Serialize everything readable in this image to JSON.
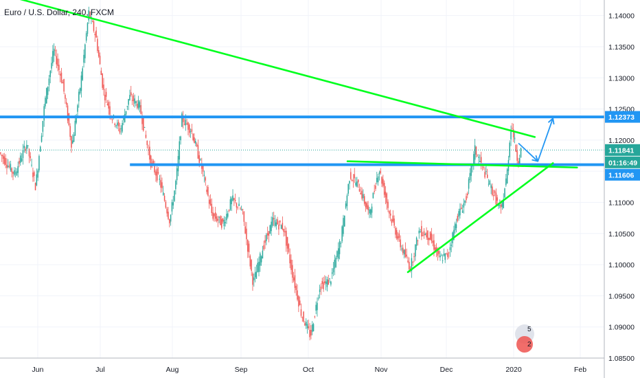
{
  "chart_data": {
    "type": "candlestick",
    "title": "Euro / U.S. Dollar, 240, FXCM",
    "x_ticks": [
      "Jun",
      "Jul",
      "Aug",
      "Sep",
      "Oct",
      "Nov",
      "Dec",
      "2020",
      "Feb"
    ],
    "y_ticks": [
      "1.14000",
      "1.13500",
      "1.13000",
      "1.12500",
      "1.12000",
      "1.11500",
      "1.11000",
      "1.10500",
      "1.10000",
      "1.09500",
      "1.09000",
      "1.08500"
    ],
    "ylim": [
      1.085,
      1.1425
    ],
    "price_levels": [
      {
        "label": "1.12373",
        "value": 1.12373,
        "color": "#2196f3"
      },
      {
        "label": "1.11841",
        "value": 1.11841,
        "color": "#26a69a"
      },
      {
        "label": "01:16:49",
        "value": 1.1166,
        "color": "#26a69a"
      },
      {
        "label": "1.11606",
        "value": 1.11606,
        "color": "#2196f3"
      }
    ],
    "horizontal_levels": [
      {
        "value": 1.12373,
        "start": 0.0,
        "end": 1.0
      },
      {
        "value": 1.11606,
        "start": 0.215,
        "end": 1.0
      }
    ],
    "dotted_level": 1.11841,
    "trendlines": [
      {
        "color": "#00ff1e",
        "from": [
          0.0,
          1.1435
        ],
        "to": [
          0.885,
          1.1205
        ]
      },
      {
        "color": "#00ff1e",
        "from": [
          0.575,
          1.1166
        ],
        "to": [
          0.955,
          1.1156
        ]
      },
      {
        "color": "#00ff1e",
        "from": [
          0.675,
          1.0988
        ],
        "to": [
          0.915,
          1.1163
        ]
      }
    ],
    "projection_arrows": [
      {
        "color": "#2196f3",
        "points": [
          [
            0.858,
            1.1195
          ],
          [
            0.89,
            1.1166
          ],
          [
            0.915,
            1.1235
          ]
        ]
      }
    ],
    "candle_colors": {
      "up": "#26a69a",
      "down": "#ef5350"
    },
    "price_path": [
      [
        0.0,
        1.118
      ],
      [
        0.025,
        1.1145
      ],
      [
        0.045,
        1.1195
      ],
      [
        0.06,
        1.1125
      ],
      [
        0.075,
        1.126
      ],
      [
        0.09,
        1.1345
      ],
      [
        0.105,
        1.129
      ],
      [
        0.12,
        1.119
      ],
      [
        0.135,
        1.1295
      ],
      [
        0.148,
        1.1405
      ],
      [
        0.16,
        1.1365
      ],
      [
        0.172,
        1.128
      ],
      [
        0.185,
        1.124
      ],
      [
        0.2,
        1.1215
      ],
      [
        0.215,
        1.127
      ],
      [
        0.232,
        1.1255
      ],
      [
        0.25,
        1.1165
      ],
      [
        0.265,
        1.1135
      ],
      [
        0.282,
        1.107
      ],
      [
        0.293,
        1.114
      ],
      [
        0.302,
        1.1235
      ],
      [
        0.318,
        1.1215
      ],
      [
        0.335,
        1.1155
      ],
      [
        0.352,
        1.108
      ],
      [
        0.37,
        1.1065
      ],
      [
        0.385,
        1.1105
      ],
      [
        0.402,
        1.1085
      ],
      [
        0.42,
        1.097
      ],
      [
        0.437,
        1.103
      ],
      [
        0.452,
        1.107
      ],
      [
        0.47,
        1.106
      ],
      [
        0.485,
        1.0985
      ],
      [
        0.5,
        1.092
      ],
      [
        0.515,
        1.0885
      ],
      [
        0.53,
        1.0965
      ],
      [
        0.548,
        1.0975
      ],
      [
        0.565,
        1.104
      ],
      [
        0.58,
        1.1145
      ],
      [
        0.595,
        1.1125
      ],
      [
        0.612,
        1.108
      ],
      [
        0.628,
        1.1155
      ],
      [
        0.645,
        1.1085
      ],
      [
        0.662,
        1.1035
      ],
      [
        0.68,
        1.0995
      ],
      [
        0.695,
        1.1055
      ],
      [
        0.712,
        1.1045
      ],
      [
        0.728,
        1.101
      ],
      [
        0.742,
        1.1015
      ],
      [
        0.757,
        1.1075
      ],
      [
        0.772,
        1.1105
      ],
      [
        0.787,
        1.1185
      ],
      [
        0.8,
        1.1155
      ],
      [
        0.815,
        1.112
      ],
      [
        0.83,
        1.1085
      ],
      [
        0.84,
        1.1145
      ],
      [
        0.847,
        1.1228
      ],
      [
        0.853,
        1.1195
      ],
      [
        0.858,
        1.1165
      ],
      [
        0.863,
        1.1184
      ]
    ]
  },
  "watermark": {
    "icon": "tradingview-logo-icon",
    "badges": [
      "5",
      "2"
    ]
  }
}
